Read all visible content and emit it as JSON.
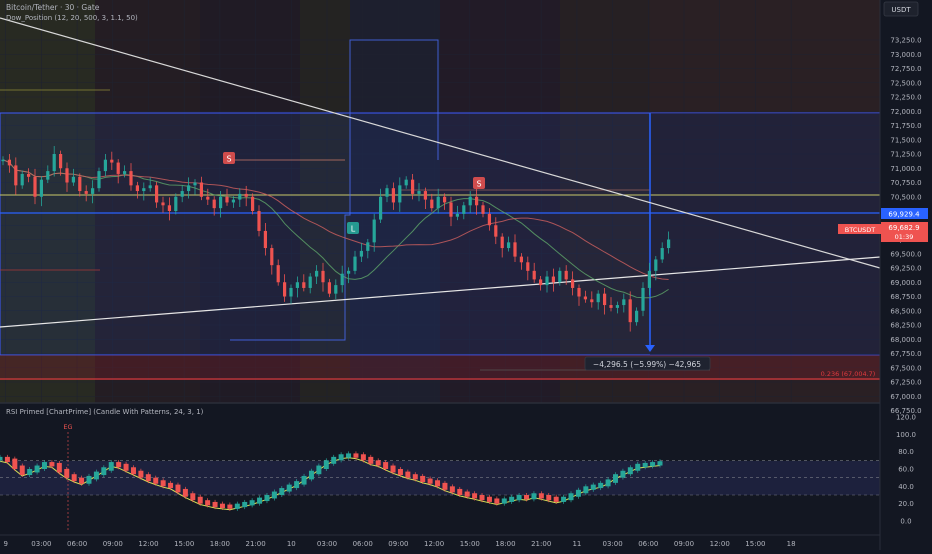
{
  "header": {
    "symbol_line": "Bitcoin/Tether · 30 · Gate",
    "indicator_line": "Dow_Position (12, 20, 500, 3, 1.1, 50)",
    "currency": "USDT"
  },
  "rsi_panel": {
    "title": "RSI Primed [ChartPrime] (Candle With Patterns, 24, 3, 1)",
    "eg_label": "EG"
  },
  "labels": {
    "s_marker": "S",
    "l_marker": "L",
    "symbol_tag": "BTCUSDT",
    "price_tag": "69,682.9",
    "countdown": "01:39",
    "level_tag": "69,929.4",
    "measure": "−4,296.5 (−5.99%) −42,965",
    "fib": "0.236 (67,004.7)"
  },
  "colors": {
    "bg": "#131722",
    "up": "#26a69a",
    "down": "#ef5350",
    "grid": "#1e2230",
    "blue": "#2962ff",
    "yellow": "#c8c86a"
  },
  "chart_data": [
    {
      "type": "candlestick",
      "title": "Bitcoin/Tether · 30 · Gate",
      "ylim": [
        66750,
        73500
      ],
      "y_ticks": [
        "73,250.0",
        "73,000.0",
        "72,750.0",
        "72,500.0",
        "72,250.0",
        "72,000.0",
        "71,750.0",
        "71,500.0",
        "71,250.0",
        "71,000.0",
        "70,750.0",
        "70,500.0",
        "70,250.0",
        "70,000.0",
        "69,750.0",
        "69,500.0",
        "69,250.0",
        "69,000.0",
        "68,750.0",
        "68,500.0",
        "68,250.0",
        "68,000.0",
        "67,750.0",
        "67,500.0",
        "67,250.0",
        "67,000.0",
        "66,750.0"
      ],
      "x_ticks": [
        "9",
        "03:00",
        "06:00",
        "09:00",
        "12:00",
        "15:00",
        "18:00",
        "21:00",
        "10",
        "03:00",
        "06:00",
        "09:00",
        "12:00",
        "15:00",
        "18:00",
        "21:00",
        "11",
        "03:00",
        "06:00",
        "09:00",
        "12:00",
        "15:00",
        "18"
      ],
      "close_path": [
        [
          0,
          71150
        ],
        [
          4,
          71050
        ],
        [
          8,
          70700
        ],
        [
          12,
          70900
        ],
        [
          16,
          70850
        ],
        [
          20,
          70500
        ],
        [
          24,
          70800
        ],
        [
          28,
          70950
        ],
        [
          32,
          71250
        ],
        [
          36,
          71000
        ],
        [
          40,
          70750
        ],
        [
          44,
          70850
        ],
        [
          48,
          70600
        ],
        [
          52,
          70550
        ],
        [
          56,
          70650
        ],
        [
          60,
          70950
        ],
        [
          64,
          71150
        ],
        [
          68,
          71100
        ],
        [
          72,
          70900
        ],
        [
          76,
          70950
        ],
        [
          80,
          70700
        ],
        [
          84,
          70600
        ],
        [
          88,
          70650
        ],
        [
          92,
          70700
        ],
        [
          96,
          70400
        ],
        [
          100,
          70350
        ],
        [
          104,
          70250
        ],
        [
          108,
          70500
        ],
        [
          112,
          70600
        ],
        [
          116,
          70700
        ],
        [
          120,
          70750
        ],
        [
          124,
          70500
        ],
        [
          128,
          70450
        ],
        [
          132,
          70300
        ],
        [
          136,
          70500
        ],
        [
          140,
          70400
        ],
        [
          144,
          70450
        ],
        [
          148,
          70550
        ],
        [
          152,
          70500
        ],
        [
          156,
          70250
        ],
        [
          160,
          69900
        ],
        [
          164,
          69600
        ],
        [
          168,
          69300
        ],
        [
          172,
          69000
        ],
        [
          176,
          68750
        ],
        [
          180,
          68900
        ],
        [
          184,
          69000
        ],
        [
          188,
          68900
        ],
        [
          192,
          69100
        ],
        [
          196,
          69200
        ],
        [
          200,
          69000
        ],
        [
          204,
          68800
        ],
        [
          208,
          68950
        ],
        [
          212,
          69150
        ],
        [
          216,
          69200
        ],
        [
          220,
          69450
        ],
        [
          224,
          69550
        ],
        [
          228,
          69700
        ],
        [
          232,
          70100
        ],
        [
          236,
          70500
        ],
        [
          240,
          70650
        ],
        [
          244,
          70400
        ],
        [
          248,
          70700
        ],
        [
          252,
          70800
        ],
        [
          256,
          70550
        ],
        [
          260,
          70600
        ],
        [
          264,
          70450
        ],
        [
          268,
          70300
        ],
        [
          272,
          70500
        ],
        [
          276,
          70400
        ],
        [
          280,
          70150
        ],
        [
          284,
          70200
        ],
        [
          288,
          70350
        ],
        [
          292,
          70500
        ],
        [
          296,
          70350
        ],
        [
          300,
          70200
        ],
        [
          304,
          70000
        ],
        [
          308,
          69800
        ],
        [
          312,
          69600
        ],
        [
          316,
          69700
        ],
        [
          320,
          69450
        ],
        [
          324,
          69350
        ],
        [
          328,
          69200
        ],
        [
          332,
          69050
        ],
        [
          336,
          68950
        ],
        [
          340,
          69100
        ],
        [
          344,
          69000
        ],
        [
          348,
          69200
        ],
        [
          352,
          69050
        ],
        [
          356,
          68900
        ],
        [
          360,
          68750
        ],
        [
          364,
          68700
        ],
        [
          368,
          68650
        ],
        [
          372,
          68800
        ],
        [
          376,
          68600
        ],
        [
          380,
          68550
        ],
        [
          384,
          68600
        ],
        [
          388,
          68700
        ],
        [
          392,
          68300
        ],
        [
          396,
          68500
        ],
        [
          400,
          68900
        ],
        [
          404,
          69200
        ],
        [
          408,
          69400
        ],
        [
          412,
          69600
        ],
        [
          416,
          69750
        ]
      ],
      "annotations": [
        "S",
        "S",
        "L",
        "BTCUSDT 69,682.9",
        "69,929.4",
        "−4,296.5 (−5.99%) −42,965",
        "0.236 (67,004.7)"
      ]
    },
    {
      "type": "line",
      "title": "RSI Primed [ChartPrime] (Candle With Patterns, 24, 3, 1)",
      "ylim": [
        0,
        120
      ],
      "y_ticks": [
        "120.0",
        "100.0",
        "80.0",
        "60.0",
        "40.0",
        "20.0",
        "0.0"
      ],
      "bands": [
        70,
        50,
        30
      ],
      "series": [
        {
          "name": "",
          "values": [
            72,
            70,
            62,
            55,
            58,
            62,
            66,
            65,
            58,
            52,
            48,
            45,
            50,
            55,
            60,
            66,
            64,
            60,
            56,
            52,
            48,
            45,
            42,
            40,
            35,
            30,
            26,
            22,
            20,
            18,
            17,
            16,
            18,
            20,
            22,
            25,
            28,
            32,
            36,
            40,
            44,
            50,
            56,
            62,
            68,
            72,
            75,
            76,
            75,
            72,
            68,
            66,
            62,
            58,
            55,
            52,
            50,
            47,
            45,
            42,
            38,
            35,
            32,
            30,
            28,
            26,
            24,
            22,
            24,
            26,
            28,
            27,
            30,
            28,
            26,
            24,
            26,
            30,
            34,
            38,
            40,
            42,
            46,
            52,
            56,
            60,
            64,
            65,
            66,
            67
          ]
        }
      ]
    }
  ]
}
